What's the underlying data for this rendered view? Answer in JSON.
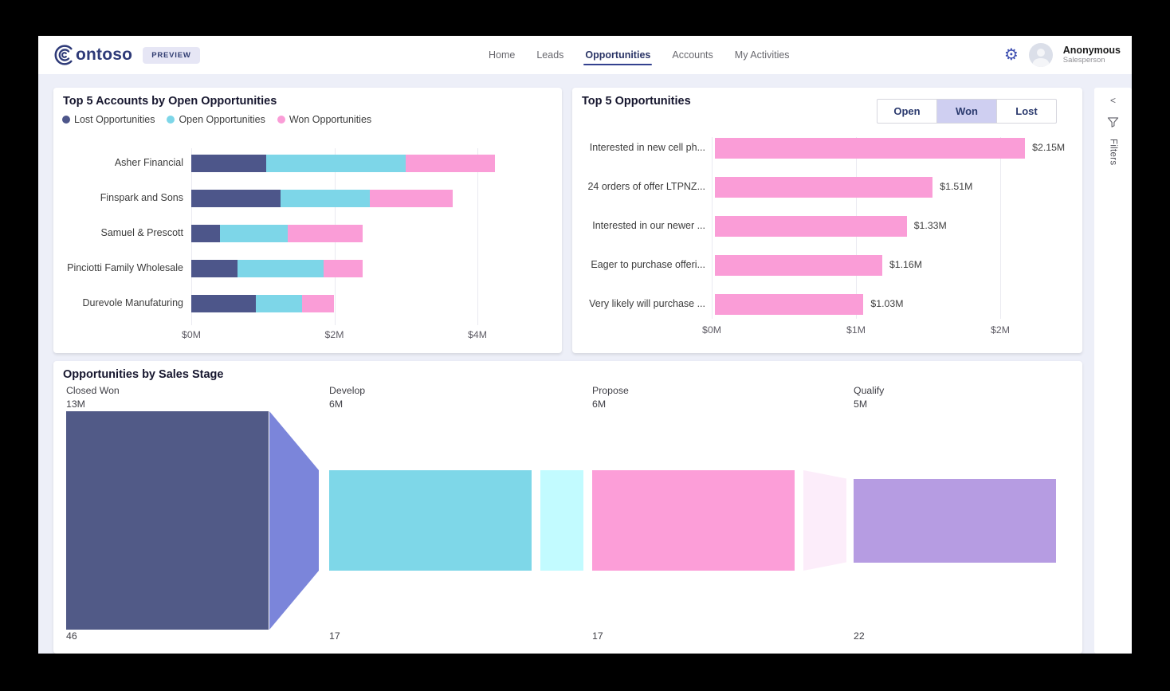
{
  "header": {
    "logo_text": "Contoso",
    "preview_badge": "PREVIEW",
    "nav_items": [
      {
        "label": "Home",
        "active": false
      },
      {
        "label": "Leads",
        "active": false
      },
      {
        "label": "Opportunities",
        "active": true
      },
      {
        "label": "Accounts",
        "active": false
      },
      {
        "label": "My Activities",
        "active": false
      }
    ],
    "gear_glyph": "⚙",
    "user": {
      "name": "Anonymous",
      "role": "Salesperson"
    }
  },
  "filters_panel": {
    "label": "Filters",
    "collapse_glyph": "<"
  },
  "colors": {
    "lost": "#4d568a",
    "open": "#7dd6e8",
    "won": "#fa9dd7",
    "accent_navy": "#33418f",
    "toggle_selected_bg": "#cfcff1",
    "page_bg": "#edeff8"
  },
  "chart_data": [
    {
      "type": "bar",
      "variant": "stacked-horizontal",
      "title": "Top 5 Accounts by Open Opportunities",
      "categories": [
        "Asher Financial",
        "Finspark and Sons",
        "Samuel & Prescott",
        "Pinciotti Family Wholesale",
        "Durevole Manufaturing"
      ],
      "series": [
        {
          "name": "Lost Opportunities",
          "color": "#4d568a",
          "values": [
            1.05,
            1.25,
            0.4,
            0.65,
            0.9
          ]
        },
        {
          "name": "Open Opportunities",
          "color": "#7dd6e8",
          "values": [
            1.95,
            1.25,
            0.95,
            1.2,
            0.65
          ]
        },
        {
          "name": "Won Opportunities",
          "color": "#fa9dd7",
          "values": [
            1.25,
            1.15,
            1.05,
            0.55,
            0.45
          ]
        }
      ],
      "x_ticks": [
        "$0M",
        "$2M",
        "$4M"
      ],
      "xlim": [
        0,
        5
      ],
      "legend_position": "top",
      "grid": true
    },
    {
      "type": "bar",
      "variant": "horizontal",
      "title": "Top 5 Opportunities",
      "toggle_buttons": [
        {
          "label": "Open",
          "selected": false
        },
        {
          "label": "Won",
          "selected": true
        },
        {
          "label": "Lost",
          "selected": false
        }
      ],
      "categories": [
        "Interested in new cell ph...",
        "24 orders of offer LTPNZ...",
        "Interested in our newer ...",
        "Eager to purchase offeri...",
        "Very likely will purchase ..."
      ],
      "values": [
        2.15,
        1.51,
        1.33,
        1.16,
        1.03
      ],
      "value_labels": [
        "$2.15M",
        "$1.51M",
        "$1.33M",
        "$1.16M",
        "$1.03M"
      ],
      "bar_color": "#fa9dd7",
      "x_ticks": [
        "$0M",
        "$1M",
        "$2M"
      ],
      "xlim": [
        0,
        2.5
      ],
      "grid": true
    },
    {
      "type": "funnel",
      "title": "Opportunities by Sales Stage",
      "stages": [
        {
          "name": "Closed Won",
          "amount_label": "13M",
          "amount": 13,
          "count": 46,
          "color": "#515a87",
          "connector_color": "#7b85da"
        },
        {
          "name": "Develop",
          "amount_label": "6M",
          "amount": 6,
          "count": 17,
          "color": "#7ed7e8",
          "connector_color": "#c2fbff"
        },
        {
          "name": "Propose",
          "amount_label": "6M",
          "amount": 6,
          "count": 17,
          "color": "#fc9ed8",
          "connector_color": "#fcedfa"
        },
        {
          "name": "Qualify",
          "amount_label": "5M",
          "amount": 5,
          "count": 22,
          "color": "#b69ce2",
          "connector_color": null
        }
      ]
    }
  ]
}
